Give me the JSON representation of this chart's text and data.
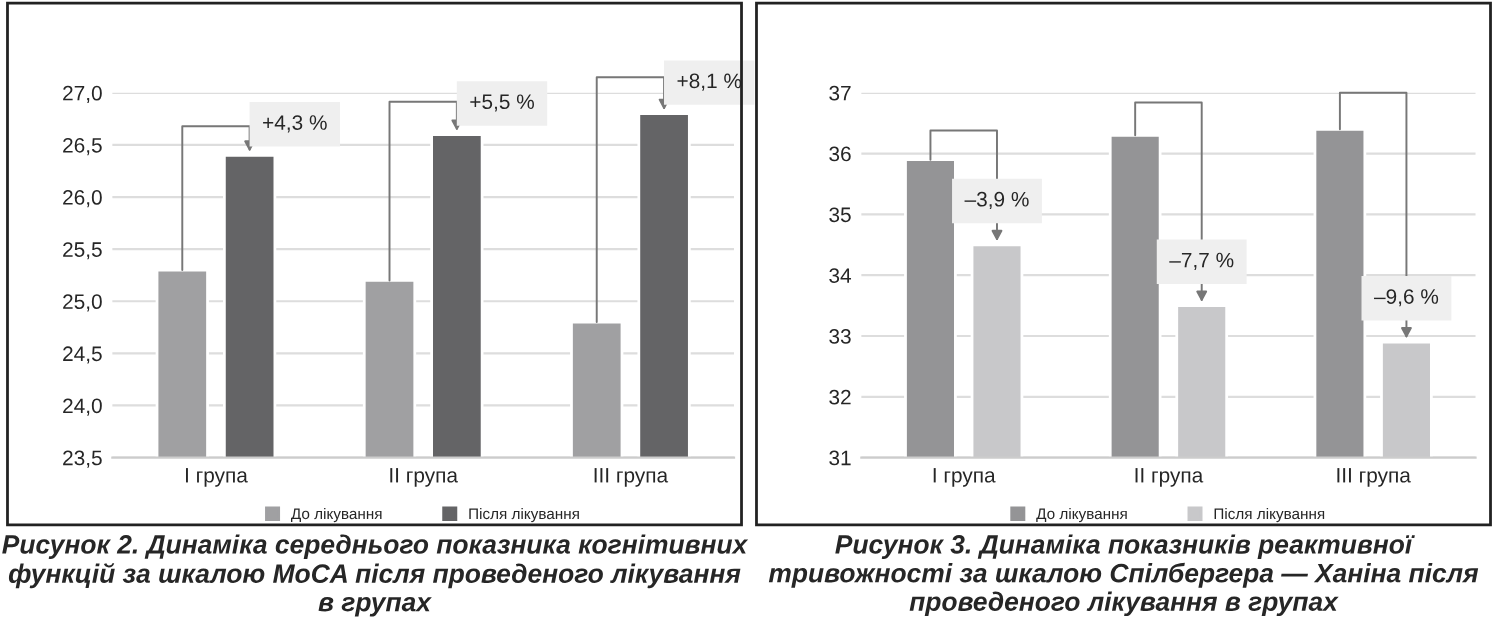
{
  "chart_data": [
    {
      "type": "bar",
      "title": "Рисунок 2. Динаміка середнього показника когнітивних функцій за шкалою MoCA після проведеного лікування в групах",
      "categories": [
        "I група",
        "II група",
        "III група"
      ],
      "series": [
        {
          "name": "До лікування",
          "color": "#a0a0a2",
          "values": [
            25.3,
            25.2,
            24.8
          ]
        },
        {
          "name": "Після лікування",
          "color": "#646466",
          "values": [
            26.4,
            26.6,
            26.8
          ]
        }
      ],
      "ylim": [
        23.5,
        27.0
      ],
      "yticks": [
        {
          "value": 23.5,
          "label": "23,5"
        },
        {
          "value": 24.0,
          "label": "24,0"
        },
        {
          "value": 24.5,
          "label": "24,5"
        },
        {
          "value": 25.0,
          "label": "25,0"
        },
        {
          "value": 25.5,
          "label": "25,5"
        },
        {
          "value": 26.0,
          "label": "26,0"
        },
        {
          "value": 26.5,
          "label": "26,5"
        },
        {
          "value": 27.0,
          "label": "27,0"
        }
      ],
      "annotations": [
        {
          "text": "+4,3 %",
          "x": "I група",
          "y": 26.4
        },
        {
          "text": "+5,5 %",
          "x": "II група",
          "y": 26.6
        },
        {
          "text": "+8,1 %",
          "x": "III група",
          "y": 26.8
        }
      ],
      "grid": "y",
      "legend": "bottom"
    },
    {
      "type": "bar",
      "title": "Рисунок 3. Динаміка показників реактивної тривожності за шкалою Спілбергера — Ханіна після проведеного лікування в групах",
      "categories": [
        "I група",
        "II група",
        "III група"
      ],
      "series": [
        {
          "name": "До лікування",
          "color": "#949496",
          "values": [
            35.9,
            36.3,
            36.4
          ]
        },
        {
          "name": "Після лікування",
          "color": "#c8c8ca",
          "values": [
            34.5,
            33.5,
            32.9
          ]
        }
      ],
      "ylim": [
        31,
        37
      ],
      "yticks": [
        31,
        32,
        33,
        34,
        35,
        36,
        37
      ],
      "annotations": [
        {
          "text": "–3,9 %",
          "x": "I група",
          "y": 34.5
        },
        {
          "text": "–7,7 %",
          "x": "II група",
          "y": 33.5
        },
        {
          "text": "–9,6 %",
          "x": "III група",
          "y": 32.9
        }
      ],
      "grid": "y",
      "legend": "bottom"
    }
  ]
}
